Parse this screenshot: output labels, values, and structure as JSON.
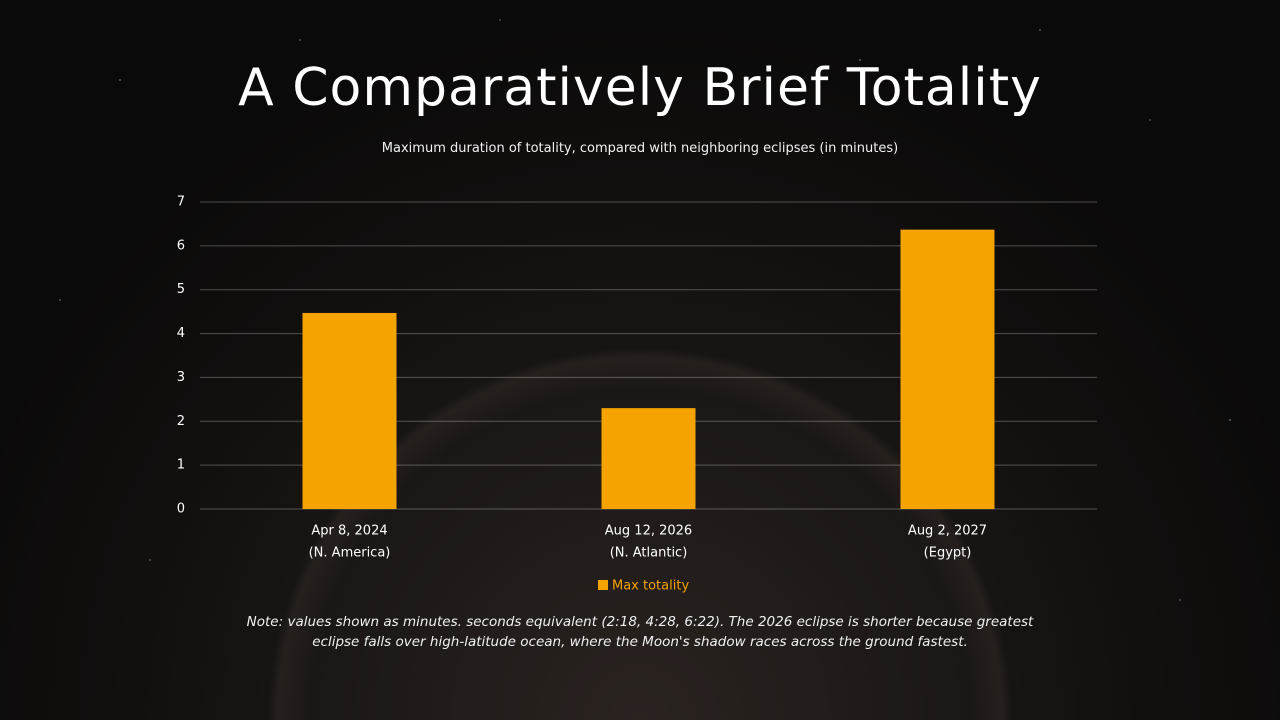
{
  "chart_data": {
    "type": "bar",
    "title": "A Comparatively Brief Totality",
    "subtitle": "Maximum duration of totality, compared with neighboring eclipses (in minutes)",
    "categories": [
      [
        "Apr 8, 2024",
        "(N. America)"
      ],
      [
        "Aug 12, 2026",
        "(N. Atlantic)"
      ],
      [
        "Aug 2, 2027",
        "(Egypt)"
      ]
    ],
    "series": [
      {
        "name": "Max totality",
        "color": "#f5a300",
        "values": [
          4.47,
          2.3,
          6.37
        ]
      }
    ],
    "ylim": [
      0,
      7
    ],
    "yticks": [
      0,
      1,
      2,
      3,
      4,
      5,
      6,
      7
    ],
    "grid": true,
    "legend": "bottom",
    "note": "Note: values shown as minutes. seconds equivalent (2:18, 4:28, 6:22). The 2026 eclipse is shorter because greatest eclipse falls over high-latitude ocean, where the Moon's shadow races across the ground fastest."
  }
}
